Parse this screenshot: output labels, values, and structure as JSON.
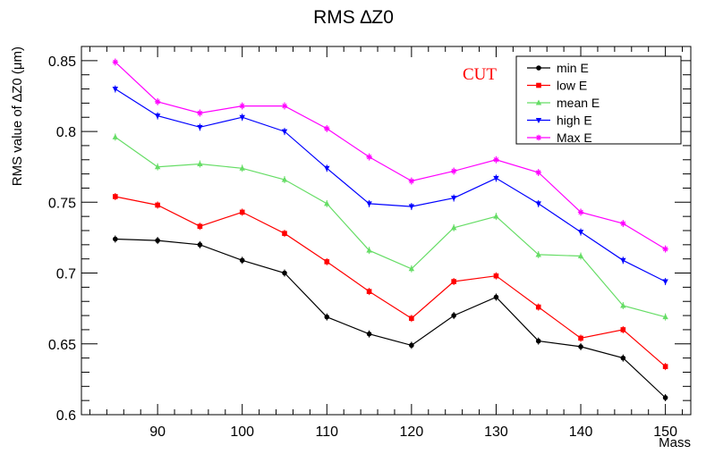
{
  "chart_data": {
    "type": "line",
    "title": "RMS ∆Z0",
    "xlabel": "Mass",
    "ylabel": "RMS value of ∆Z0 (μm)",
    "annotation": "CUT",
    "annotation_color": "#ff0000",
    "xlim": [
      81,
      153
    ],
    "ylim": [
      0.6,
      0.86
    ],
    "x_ticks": [
      90,
      100,
      110,
      120,
      130,
      140,
      150
    ],
    "x_tick_labels": [
      "90",
      "100",
      "110",
      "120",
      "130",
      "140",
      "150"
    ],
    "y_ticks": [
      0.6,
      0.65,
      0.7,
      0.75,
      0.8,
      0.85
    ],
    "y_tick_labels": [
      "0.6",
      "0.65",
      "0.7",
      "0.75",
      "0.8",
      "0.85"
    ],
    "grid": false,
    "legend_position": "top-right",
    "x": [
      85,
      90,
      95,
      100,
      105,
      110,
      115,
      120,
      125,
      130,
      135,
      140,
      145,
      150
    ],
    "series": [
      {
        "name": "min E",
        "color": "#000000",
        "marker": "circle",
        "values": [
          0.724,
          0.723,
          0.72,
          0.709,
          0.7,
          0.669,
          0.657,
          0.649,
          0.67,
          0.683,
          0.652,
          0.648,
          0.64,
          0.612
        ]
      },
      {
        "name": "low E",
        "color": "#ff0000",
        "marker": "square",
        "values": [
          0.754,
          0.748,
          0.733,
          0.743,
          0.728,
          0.708,
          0.687,
          0.668,
          0.694,
          0.698,
          0.676,
          0.654,
          0.66,
          0.634
        ]
      },
      {
        "name": "mean E",
        "color": "#66dd66",
        "marker": "triangle-up",
        "values": [
          0.796,
          0.775,
          0.777,
          0.774,
          0.766,
          0.749,
          0.716,
          0.703,
          0.732,
          0.74,
          0.713,
          0.712,
          0.677,
          0.669
        ]
      },
      {
        "name": "high E",
        "color": "#0000ff",
        "marker": "triangle-down",
        "values": [
          0.83,
          0.811,
          0.803,
          0.81,
          0.8,
          0.774,
          0.749,
          0.747,
          0.753,
          0.767,
          0.749,
          0.729,
          0.709,
          0.694
        ]
      },
      {
        "name": "Max E",
        "color": "#ff00ff",
        "marker": "star",
        "values": [
          0.849,
          0.821,
          0.813,
          0.818,
          0.818,
          0.802,
          0.782,
          0.765,
          0.772,
          0.78,
          0.771,
          0.743,
          0.735,
          0.717
        ]
      }
    ]
  }
}
